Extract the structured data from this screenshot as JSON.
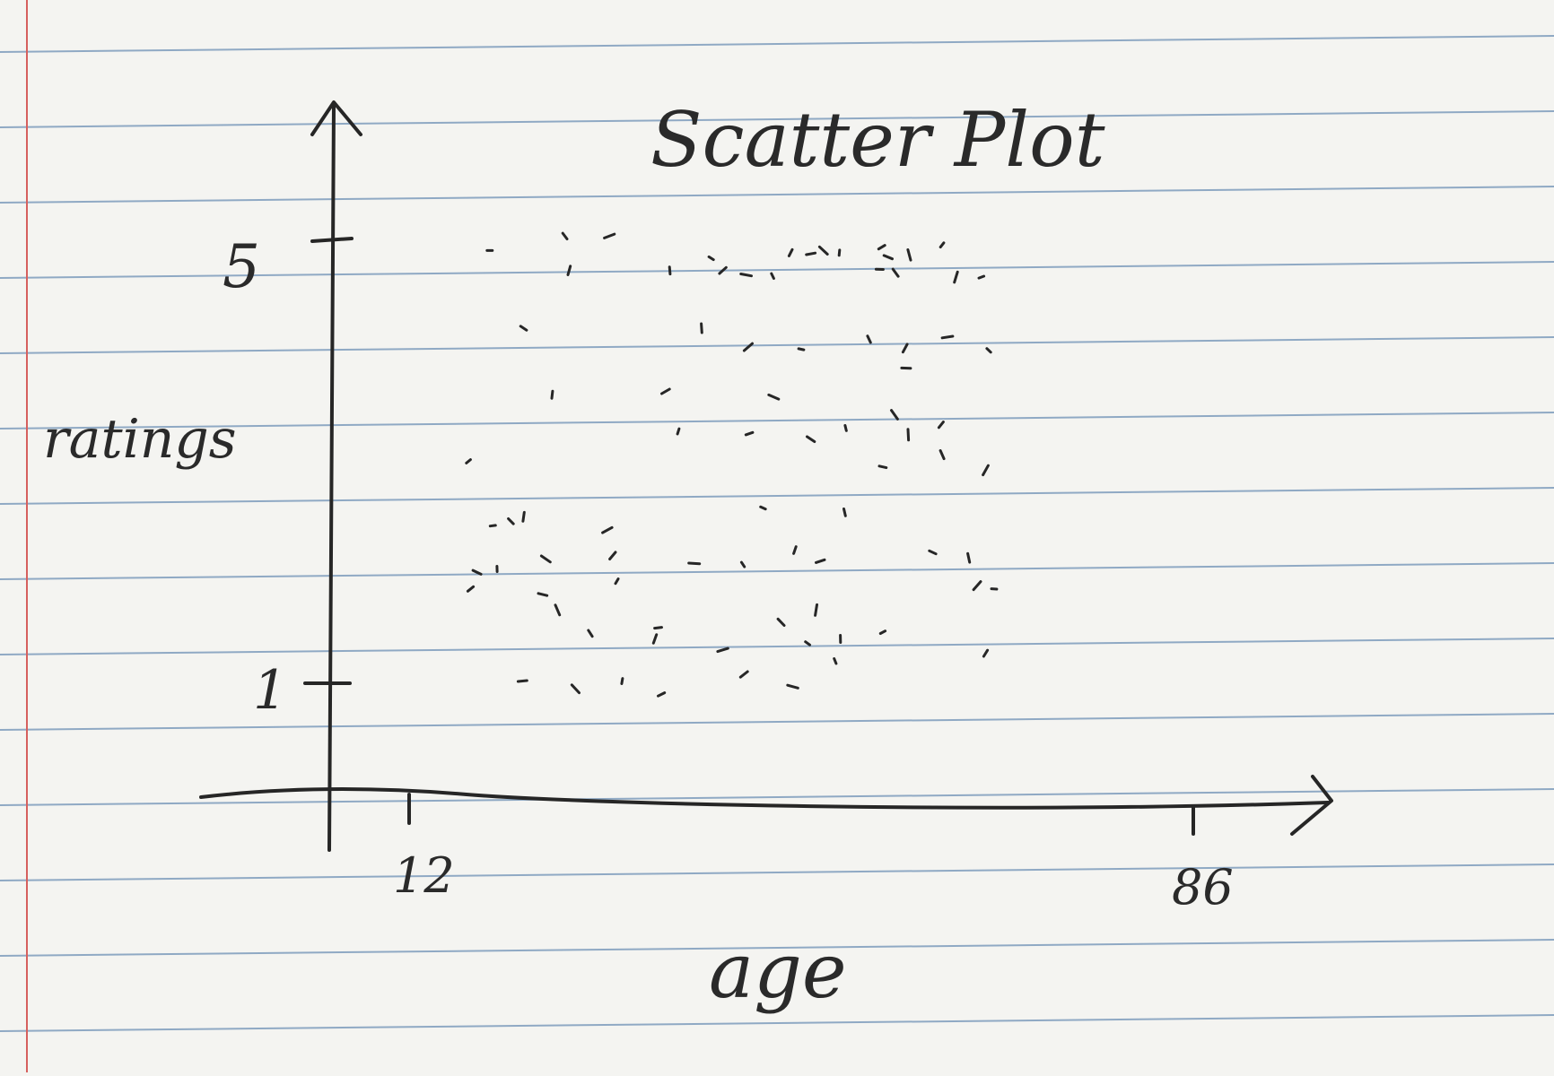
{
  "colors": {
    "paper": "#f4f4f1",
    "rule_line": "#8fa9c4",
    "margin_line": "#d6605e",
    "ink": "#262626"
  },
  "chart_data": {
    "type": "scatter",
    "title": "Scatter Plot",
    "xlabel": "age",
    "ylabel": "ratings",
    "x_ticks": [
      12,
      86
    ],
    "y_ticks": [
      5,
      1
    ],
    "xlim": [
      4,
      97
    ],
    "ylim": [
      -0.3,
      6.2
    ],
    "grid": false,
    "points": [
      {
        "x": 19.6,
        "y": 4.9
      },
      {
        "x": 26.7,
        "y": 5.03
      },
      {
        "x": 27.1,
        "y": 4.72
      },
      {
        "x": 30.9,
        "y": 5.03
      },
      {
        "x": 40.5,
        "y": 4.83
      },
      {
        "x": 36.6,
        "y": 4.72
      },
      {
        "x": 41.6,
        "y": 4.72
      },
      {
        "x": 43.8,
        "y": 4.68
      },
      {
        "x": 46.3,
        "y": 4.67
      },
      {
        "x": 48.0,
        "y": 4.88
      },
      {
        "x": 49.9,
        "y": 4.87
      },
      {
        "x": 51.1,
        "y": 4.9
      },
      {
        "x": 52.6,
        "y": 4.88
      },
      {
        "x": 56.6,
        "y": 4.93
      },
      {
        "x": 57.2,
        "y": 4.84
      },
      {
        "x": 59.2,
        "y": 4.86
      },
      {
        "x": 62.3,
        "y": 4.95
      },
      {
        "x": 56.4,
        "y": 4.73
      },
      {
        "x": 57.9,
        "y": 4.7
      },
      {
        "x": 63.6,
        "y": 4.66
      },
      {
        "x": 66.0,
        "y": 4.66
      },
      {
        "x": 22.8,
        "y": 4.2
      },
      {
        "x": 39.6,
        "y": 4.2
      },
      {
        "x": 44.0,
        "y": 4.03
      },
      {
        "x": 49.0,
        "y": 4.01
      },
      {
        "x": 55.4,
        "y": 4.1
      },
      {
        "x": 58.8,
        "y": 4.02
      },
      {
        "x": 62.8,
        "y": 4.12
      },
      {
        "x": 66.7,
        "y": 4.0
      },
      {
        "x": 25.5,
        "y": 3.6
      },
      {
        "x": 36.2,
        "y": 3.63
      },
      {
        "x": 46.4,
        "y": 3.58
      },
      {
        "x": 53.2,
        "y": 3.3
      },
      {
        "x": 62.2,
        "y": 3.33
      },
      {
        "x": 58.9,
        "y": 3.84
      },
      {
        "x": 57.8,
        "y": 3.42
      },
      {
        "x": 37.4,
        "y": 3.27
      },
      {
        "x": 44.1,
        "y": 3.25
      },
      {
        "x": 49.9,
        "y": 3.2
      },
      {
        "x": 59.1,
        "y": 3.24
      },
      {
        "x": 17.6,
        "y": 3.0
      },
      {
        "x": 56.7,
        "y": 2.95
      },
      {
        "x": 62.3,
        "y": 3.06
      },
      {
        "x": 66.4,
        "y": 2.92
      },
      {
        "x": 19.9,
        "y": 2.42
      },
      {
        "x": 21.6,
        "y": 2.46
      },
      {
        "x": 22.8,
        "y": 2.5
      },
      {
        "x": 30.7,
        "y": 2.38
      },
      {
        "x": 45.4,
        "y": 2.58
      },
      {
        "x": 53.1,
        "y": 2.54
      },
      {
        "x": 31.2,
        "y": 2.15
      },
      {
        "x": 38.9,
        "y": 2.08
      },
      {
        "x": 43.5,
        "y": 2.07
      },
      {
        "x": 48.4,
        "y": 2.2
      },
      {
        "x": 50.8,
        "y": 2.1
      },
      {
        "x": 24.9,
        "y": 2.12
      },
      {
        "x": 20.3,
        "y": 2.03
      },
      {
        "x": 17.8,
        "y": 1.85
      },
      {
        "x": 24.6,
        "y": 1.8
      },
      {
        "x": 26.0,
        "y": 1.66
      },
      {
        "x": 31.6,
        "y": 1.92
      },
      {
        "x": 35.5,
        "y": 1.5
      },
      {
        "x": 47.1,
        "y": 1.55
      },
      {
        "x": 50.4,
        "y": 1.66
      },
      {
        "x": 56.7,
        "y": 1.46
      },
      {
        "x": 61.4,
        "y": 2.18
      },
      {
        "x": 64.8,
        "y": 2.13
      },
      {
        "x": 65.6,
        "y": 1.88
      },
      {
        "x": 67.2,
        "y": 1.85
      },
      {
        "x": 29.1,
        "y": 1.45
      },
      {
        "x": 35.2,
        "y": 1.4
      },
      {
        "x": 41.6,
        "y": 1.3
      },
      {
        "x": 49.6,
        "y": 1.36
      },
      {
        "x": 52.7,
        "y": 1.4
      },
      {
        "x": 43.6,
        "y": 1.08
      },
      {
        "x": 48.2,
        "y": 0.97
      },
      {
        "x": 52.2,
        "y": 1.2
      },
      {
        "x": 66.4,
        "y": 1.27
      },
      {
        "x": 22.7,
        "y": 1.02
      },
      {
        "x": 27.7,
        "y": 0.95
      },
      {
        "x": 32.1,
        "y": 1.02
      },
      {
        "x": 35.8,
        "y": 0.9
      },
      {
        "x": 18.4,
        "y": 2.0
      }
    ]
  }
}
